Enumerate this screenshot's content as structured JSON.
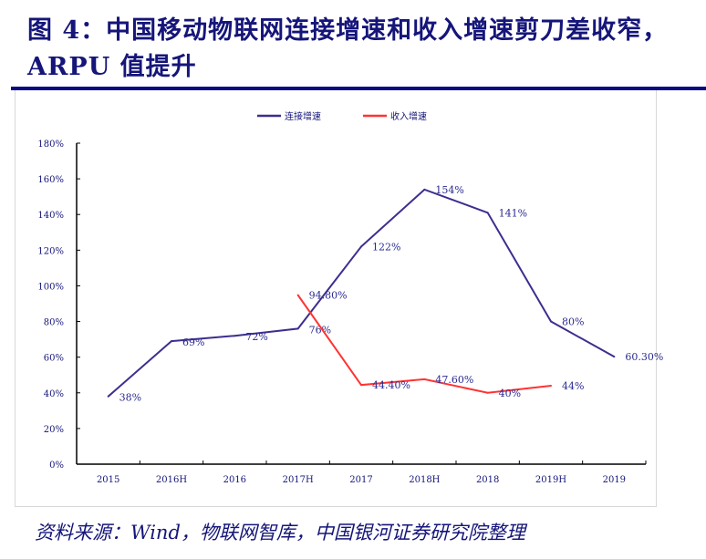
{
  "title": "图 4：中国移动物联网连接增速和收入增速剪刀差收窄，ARPU 值提升",
  "source": "资料来源：Wind，物联网智库，中国银河证券研究院整理",
  "chart_data": {
    "type": "line",
    "categories": [
      "2015",
      "2016H",
      "2016",
      "2017H",
      "2017",
      "2018H",
      "2018",
      "2019H",
      "2019"
    ],
    "ylim": [
      0,
      180
    ],
    "yticks": [
      "0%",
      "20%",
      "40%",
      "60%",
      "80%",
      "100%",
      "120%",
      "140%",
      "160%",
      "180%"
    ],
    "legend_position": "top",
    "grid": false,
    "series": [
      {
        "name": "连接增速",
        "color": "#3d2e8f",
        "values": [
          38,
          69,
          72,
          76,
          122,
          154,
          141,
          80,
          60.3
        ],
        "labels": [
          "38%",
          "69%",
          "72%",
          "76%",
          "122%",
          "154%",
          "141%",
          "80%",
          "60.30%"
        ]
      },
      {
        "name": "收入增速",
        "color": "#ff3333",
        "values": [
          null,
          null,
          null,
          94.8,
          44.4,
          47.6,
          40,
          44,
          null
        ],
        "labels": [
          null,
          null,
          null,
          "94.80%",
          "44.40%",
          "47.60%",
          "40%",
          "44%",
          null
        ]
      }
    ]
  }
}
